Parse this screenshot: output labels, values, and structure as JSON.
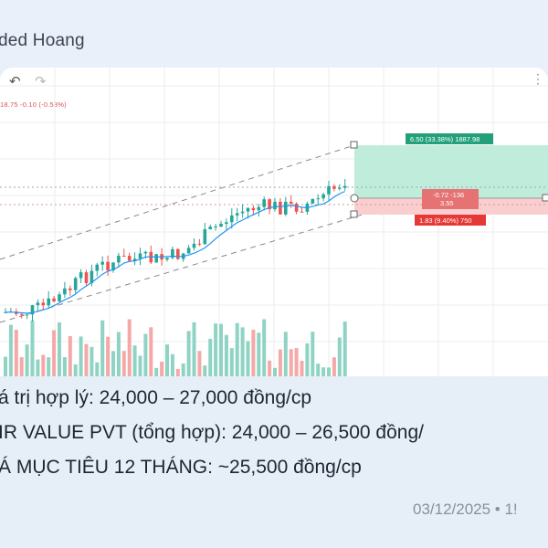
{
  "header": {
    "name": "ded Hoang"
  },
  "toolbar": {
    "undo_icon": "undo-icon",
    "redo_icon": "redo-icon",
    "more_icon": "more-dots-icon"
  },
  "chart": {
    "ohlc_text": "18.75 -0.10 (-0.53%)",
    "target_label": "6.50 (33.38%) 1887.98",
    "mid_label_1": "-0.72 -136",
    "mid_label_2": "3.55",
    "stop_label": "1.83 (9.40%) 750",
    "colors": {
      "up": "#26a69a",
      "down": "#ef5350",
      "target_box": "#b9ead8",
      "stop_box": "#f9c9c9",
      "channel": "#888888",
      "ma": "#2196f3"
    }
  },
  "text": {
    "line1": "á trị hợp lý: 24,000 – 27,000 đồng/cp",
    "line2": "IR VALUE PVT (tổng hợp): 24,000 – 26,500 đồng/",
    "line3": "Á MỤC TIÊU 12 THÁNG: ~25,500 đồng/cp",
    "meta": "03/12/2025 • 1!"
  }
}
